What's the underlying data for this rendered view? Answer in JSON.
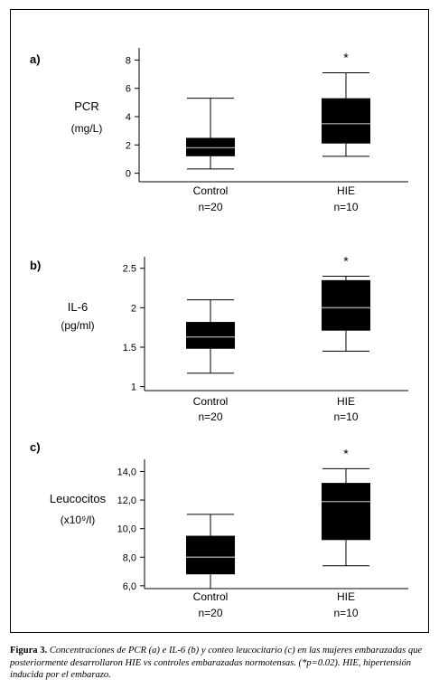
{
  "figure": {
    "caption_label": "Figura 3.",
    "caption_text": "Concentraciones de PCR (a) e IL-6 (b) y conteo leucocitario (c) en las mujeres embarazadas que posteriormente desarrollaron HIE vs controles embarazadas normotensas. (*p=0.02). HIE, hipertensión inducida por el embarazo."
  },
  "chart_data": [
    {
      "type": "boxplot",
      "panel": "a)",
      "ylabel": "PCR",
      "yunit": "(mg/L)",
      "ylim": [
        -0.6,
        8.6
      ],
      "yticks": [
        "0",
        "2",
        "4",
        "6",
        "8"
      ],
      "yticks_values": [
        0,
        2,
        4,
        6,
        8
      ],
      "grid": false,
      "categories": [
        {
          "label": "Control",
          "n": "n=20",
          "whisker_low": 0.3,
          "q1": 1.2,
          "median": 1.8,
          "q3": 2.5,
          "whisker_high": 5.3,
          "significance": ""
        },
        {
          "label": "HIE",
          "n": "n=10",
          "whisker_low": 1.2,
          "q1": 2.1,
          "median": 3.5,
          "q3": 5.3,
          "whisker_high": 7.1,
          "significance": "*"
        }
      ]
    },
    {
      "type": "boxplot",
      "panel": "b)",
      "ylabel": "IL-6",
      "yunit": "(pg/ml)",
      "ylim": [
        0.95,
        2.6
      ],
      "yticks": [
        "1",
        "1.5",
        "2",
        "2.5"
      ],
      "yticks_values": [
        1,
        1.5,
        2,
        2.5
      ],
      "grid": false,
      "categories": [
        {
          "label": "Control",
          "n": "n=20",
          "whisker_low": 1.17,
          "q1": 1.48,
          "median": 1.63,
          "q3": 1.82,
          "whisker_high": 2.1,
          "significance": ""
        },
        {
          "label": "HIE",
          "n": "n=10",
          "whisker_low": 1.45,
          "q1": 1.71,
          "median": 2.0,
          "q3": 2.35,
          "whisker_high": 2.4,
          "significance": "*"
        }
      ]
    },
    {
      "type": "boxplot",
      "panel": "c)",
      "ylabel": "Leucocitos",
      "yunit": "(x10⁹/l)",
      "ylim": [
        5.8,
        14.6
      ],
      "yticks": [
        "6,0",
        "8,0",
        "10,0",
        "12,0",
        "14,0"
      ],
      "yticks_values": [
        6,
        8,
        10,
        12,
        14
      ],
      "grid": false,
      "categories": [
        {
          "label": "Control",
          "n": "n=20",
          "whisker_low": 5.8,
          "q1": 6.8,
          "median": 8.0,
          "q3": 9.5,
          "whisker_high": 11.0,
          "significance": ""
        },
        {
          "label": "HIE",
          "n": "n=10",
          "whisker_low": 7.4,
          "q1": 9.2,
          "median": 11.9,
          "q3": 13.2,
          "whisker_high": 14.2,
          "significance": "*"
        }
      ]
    }
  ]
}
